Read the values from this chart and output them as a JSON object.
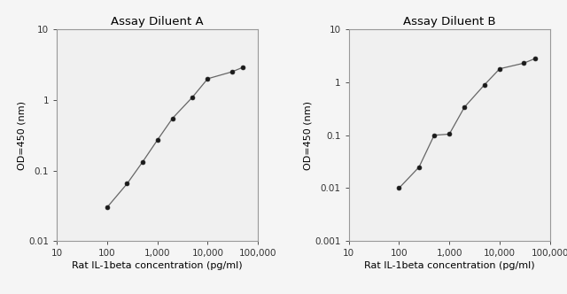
{
  "chart_A": {
    "title": "Assay Diluent A",
    "x": [
      100,
      250,
      500,
      1000,
      2000,
      5000,
      10000,
      30000,
      50000
    ],
    "y": [
      0.03,
      0.065,
      0.13,
      0.27,
      0.55,
      1.1,
      2.0,
      2.5,
      2.9
    ],
    "xlim": [
      10,
      100000
    ],
    "ylim": [
      0.01,
      10
    ],
    "xticks": [
      10,
      100,
      1000,
      10000,
      100000
    ],
    "xtick_labels": [
      "10",
      "100",
      "1,000",
      "10,000",
      "100,000"
    ],
    "yticks": [
      0.01,
      0.1,
      1,
      10
    ],
    "ytick_labels": [
      "0.01",
      "0.1",
      "1",
      "10"
    ],
    "ylabel": "OD=450 (nm)",
    "xlabel": "Rat IL-1beta concentration (pg/ml)"
  },
  "chart_B": {
    "title": "Assay Diluent B",
    "x": [
      100,
      250,
      500,
      1000,
      2000,
      5000,
      10000,
      30000,
      50000
    ],
    "y": [
      0.01,
      0.025,
      0.1,
      0.105,
      0.34,
      0.9,
      1.8,
      2.3,
      2.8
    ],
    "xlim": [
      10,
      100000
    ],
    "ylim": [
      0.001,
      10
    ],
    "xticks": [
      10,
      100,
      1000,
      10000,
      100000
    ],
    "xtick_labels": [
      "10",
      "100",
      "1,000",
      "10,000",
      "100,000"
    ],
    "yticks": [
      0.001,
      0.01,
      0.1,
      1,
      10
    ],
    "ytick_labels": [
      "0.001",
      "0.01",
      "0.1",
      "1",
      "10"
    ],
    "ylabel": "OD=450 (nm)",
    "xlabel": "Rat IL-1beta concentration (pg/ml)"
  },
  "line_color": "#666666",
  "marker_color": "#1a1a1a",
  "background": "#f5f5f5",
  "title_fontsize": 9.5,
  "label_fontsize": 8,
  "tick_fontsize": 7.5
}
